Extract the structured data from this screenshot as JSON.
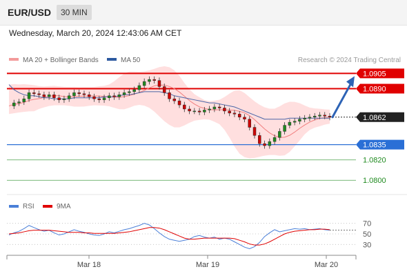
{
  "header": {
    "pair": "EUR/USD",
    "timeframe": "30 MIN"
  },
  "datetime": "Wednesday, March 20, 2024 12:43:06 AM CET",
  "legend": {
    "ma20": "MA 20 + Bollinger Bands",
    "ma50": "MA 50",
    "source": "Research © 2024 Trading Central"
  },
  "rsi_legend": {
    "rsi": "RSI",
    "ma9": "9MA"
  },
  "colors": {
    "resistance": "#e00000",
    "support": "#2a6fd6",
    "target": "#1f8a1f",
    "current": "#222222",
    "bollinger": "#ffb8b8",
    "ma20": "#f07f7f",
    "ma50": "#4a66a8",
    "candle_up": "#1f8a1f",
    "candle_down": "#cc0000",
    "rsi": "#4a7fd8",
    "rsi_ma": "#e00000",
    "arrow": "#2d63b5"
  },
  "chart_data": {
    "type": "line",
    "title": "",
    "x_ticks": [
      "Mar 18",
      "Mar 19",
      "Mar 20"
    ],
    "ylim": [
      1.079,
      1.0912
    ],
    "price_levels": [
      {
        "label": "1.0905",
        "value": 1.0905,
        "kind": "resistance"
      },
      {
        "label": "1.0890",
        "value": 1.089,
        "kind": "resistance"
      },
      {
        "label": "1.0862",
        "value": 1.0862,
        "kind": "current"
      },
      {
        "label": "1.0835",
        "value": 1.0835,
        "kind": "support"
      },
      {
        "label": "1.0820",
        "value": 1.082,
        "kind": "target"
      },
      {
        "label": "1.0800",
        "value": 1.08,
        "kind": "target"
      }
    ],
    "price_series": [
      1.0873,
      1.0876,
      1.0877,
      1.088,
      1.0886,
      1.0885,
      1.0884,
      1.0882,
      1.0884,
      1.0881,
      1.0879,
      1.088,
      1.0883,
      1.0886,
      1.0885,
      1.0884,
      1.0882,
      1.088,
      1.0879,
      1.0881,
      1.0883,
      1.0882,
      1.0884,
      1.0886,
      1.0887,
      1.0889,
      1.0893,
      1.0897,
      1.0899,
      1.0898,
      1.0892,
      1.0886,
      1.088,
      1.0878,
      1.0874,
      1.087,
      1.0868,
      1.0868,
      1.0867,
      1.0869,
      1.087,
      1.0872,
      1.0871,
      1.0868,
      1.0866,
      1.0865,
      1.0862,
      1.086,
      1.0852,
      1.0844,
      1.0836,
      1.0834,
      1.0838,
      1.0842,
      1.0848,
      1.0854,
      1.0857,
      1.0858,
      1.086,
      1.0861,
      1.0862,
      1.0863,
      1.0864,
      1.0863,
      1.0862
    ],
    "ma50_series": [
      1.0894,
      1.0889,
      1.0886,
      1.0884,
      1.0883,
      1.0883,
      1.0882,
      1.0881,
      1.0881,
      1.088,
      1.088,
      1.088,
      1.088,
      1.0881,
      1.0881,
      1.0881,
      1.0881,
      1.0881,
      1.0881,
      1.0882,
      1.0882,
      1.0882,
      1.0883,
      1.0884,
      1.0884,
      1.0885,
      1.0886,
      1.0887,
      1.0887,
      1.0887,
      1.0887,
      1.0886,
      1.0885,
      1.0883,
      1.0882,
      1.0881,
      1.088,
      1.0879,
      1.0878,
      1.0877,
      1.0876,
      1.0876,
      1.0875,
      1.0874,
      1.0873,
      1.0872,
      1.087,
      1.0868,
      1.0866,
      1.0864,
      1.0862,
      1.086,
      1.086,
      1.086,
      1.086,
      1.086,
      1.0861,
      1.0861,
      1.0861,
      1.0861,
      1.0861,
      1.0861,
      1.0861,
      1.0861,
      1.0861
    ],
    "forecast": {
      "from": 1.0862,
      "to": 1.0905
    },
    "rsi": {
      "levels": [
        70,
        50,
        30
      ],
      "values": [
        48,
        52,
        55,
        60,
        66,
        62,
        58,
        55,
        57,
        52,
        48,
        50,
        54,
        58,
        55,
        53,
        50,
        48,
        47,
        50,
        54,
        52,
        55,
        58,
        60,
        63,
        66,
        70,
        67,
        60,
        52,
        45,
        40,
        38,
        36,
        38,
        40,
        45,
        47,
        44,
        42,
        44,
        40,
        42,
        40,
        35,
        30,
        25,
        22,
        26,
        34,
        45,
        52,
        58,
        54,
        56,
        58,
        60,
        59,
        60,
        58,
        59,
        60,
        58,
        57
      ],
      "ma9_values": [
        50,
        51,
        52,
        54,
        56,
        57,
        57,
        57,
        57,
        56,
        55,
        54,
        53,
        53,
        53,
        52,
        52,
        51,
        51,
        51,
        51,
        51,
        52,
        53,
        54,
        56,
        58,
        60,
        62,
        62,
        61,
        58,
        54,
        50,
        46,
        42,
        40,
        40,
        41,
        42,
        42,
        42,
        42,
        42,
        42,
        41,
        38,
        35,
        31,
        29,
        29,
        31,
        35,
        40,
        45,
        50,
        53,
        55,
        56,
        57,
        58,
        58,
        59,
        59,
        58
      ]
    }
  }
}
